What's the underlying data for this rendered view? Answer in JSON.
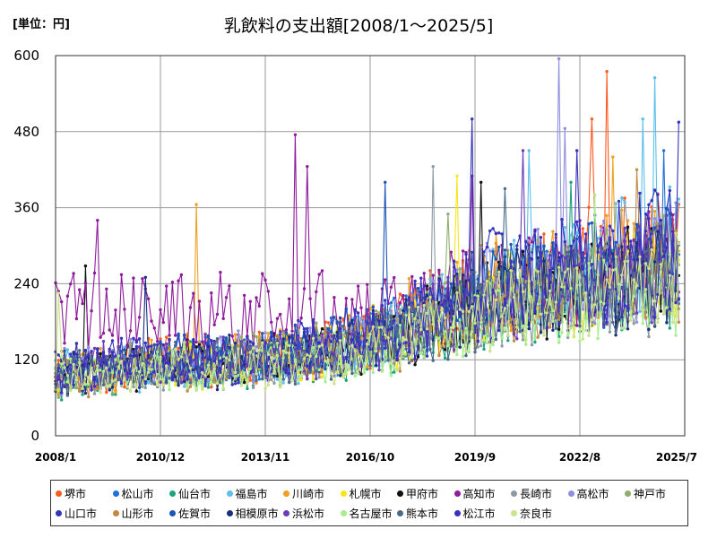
{
  "chart_data": {
    "type": "line",
    "title": "乳飲料の支出額[2008/1～2025/5]",
    "unit_label": "[単位：円]",
    "x_start": "2008/1",
    "x_end": "2025/5",
    "x_ticks": [
      "2008/1",
      "2010/12",
      "2013/11",
      "2016/10",
      "2019/9",
      "2022/8",
      "2025/7"
    ],
    "y_ticks": [
      0,
      120,
      240,
      360,
      480,
      600
    ],
    "ylim": [
      0,
      600
    ],
    "grid": true,
    "legend_position": "bottom",
    "series": [
      {
        "name": "堺市",
        "color": "#ff5a1f",
        "trend": [
          95,
          118,
          125,
          160,
          235,
          300
        ],
        "peaks": [
          [
            2023.3,
            575
          ],
          [
            2025.4,
            568
          ],
          [
            2022.9,
            500
          ]
        ]
      },
      {
        "name": "松山市",
        "color": "#1f6fd8",
        "trend": [
          92,
          112,
          118,
          150,
          220,
          270
        ],
        "peaks": [
          [
            2024.9,
            450
          ]
        ]
      },
      {
        "name": "仙台市",
        "color": "#1fa37a",
        "trend": [
          88,
          106,
          115,
          145,
          200,
          245
        ],
        "peaks": [
          [
            2022.3,
            400
          ]
        ]
      },
      {
        "name": "福島市",
        "color": "#5bc0eb",
        "trend": [
          95,
          110,
          120,
          150,
          230,
          300
        ],
        "peaks": [
          [
            2024.7,
            565
          ],
          [
            2024.3,
            500
          ],
          [
            2021.2,
            450
          ]
        ]
      },
      {
        "name": "川崎市",
        "color": "#f0a020",
        "trend": [
          100,
          118,
          128,
          160,
          240,
          285
        ],
        "peaks": [
          [
            2011.9,
            365
          ],
          [
            2023.5,
            440
          ]
        ]
      },
      {
        "name": "札幌市",
        "color": "#f5e61a",
        "trend": [
          96,
          110,
          118,
          150,
          215,
          260
        ],
        "peaks": [
          [
            2019.2,
            410
          ]
        ]
      },
      {
        "name": "甲府市",
        "color": "#111111",
        "trend": [
          100,
          115,
          120,
          150,
          215,
          255
        ],
        "peaks": [
          [
            2008.8,
            268
          ],
          [
            2019.8,
            400
          ]
        ]
      },
      {
        "name": "高知市",
        "color": "#8e1a9c",
        "trend": [
          200,
          205,
          200,
          195,
          235,
          280
        ],
        "peaks": [
          [
            2014.7,
            475
          ],
          [
            2015.0,
            425
          ],
          [
            2009.2,
            340
          ],
          [
            2019.6,
            410
          ]
        ]
      },
      {
        "name": "長崎市",
        "color": "#8c9aa6",
        "trend": [
          90,
          106,
          115,
          140,
          200,
          240
        ],
        "peaks": [
          [
            2018.5,
            425
          ]
        ]
      },
      {
        "name": "高松市",
        "color": "#8f8fe0",
        "trend": [
          100,
          118,
          125,
          155,
          230,
          285
        ],
        "peaks": [
          [
            2022.0,
            595
          ],
          [
            2022.2,
            485
          ]
        ]
      },
      {
        "name": "神戸市",
        "color": "#8fae6d",
        "trend": [
          95,
          112,
          122,
          150,
          225,
          270
        ],
        "peaks": [
          [
            2018.9,
            350
          ]
        ]
      },
      {
        "name": "山口市",
        "color": "#3333bb",
        "trend": [
          105,
          120,
          128,
          160,
          245,
          300
        ],
        "peaks": [
          [
            2019.6,
            500
          ],
          [
            2025.3,
            495
          ]
        ]
      },
      {
        "name": "山形市",
        "color": "#c08a40",
        "trend": [
          92,
          108,
          118,
          148,
          210,
          250
        ],
        "peaks": [
          [
            2024.2,
            420
          ]
        ]
      },
      {
        "name": "佐賀市",
        "color": "#1a55b8",
        "trend": [
          98,
          116,
          125,
          158,
          230,
          280
        ],
        "peaks": [
          [
            2017.2,
            400
          ]
        ]
      },
      {
        "name": "相模原市",
        "color": "#1a2f80",
        "trend": [
          96,
          110,
          120,
          148,
          210,
          255
        ],
        "peaks": [
          [
            2010.5,
            250
          ]
        ]
      },
      {
        "name": "浜松市",
        "color": "#6a3db8",
        "trend": [
          100,
          115,
          122,
          150,
          220,
          265
        ],
        "peaks": [
          [
            2021.0,
            450
          ]
        ]
      },
      {
        "name": "名古屋市",
        "color": "#a6ee8e",
        "trend": [
          90,
          105,
          112,
          135,
          190,
          235
        ],
        "peaks": [
          [
            2023.0,
            380
          ]
        ]
      },
      {
        "name": "熊本市",
        "color": "#4a6a8a",
        "trend": [
          94,
          110,
          118,
          146,
          205,
          248
        ],
        "peaks": [
          [
            2020.5,
            390
          ]
        ]
      },
      {
        "name": "松江市",
        "color": "#3a30c0",
        "trend": [
          100,
          116,
          124,
          155,
          225,
          275
        ],
        "peaks": [
          [
            2022.5,
            450
          ]
        ]
      },
      {
        "name": "奈良市",
        "color": "#cbe38a",
        "trend": [
          88,
          104,
          112,
          140,
          195,
          238
        ],
        "peaks": [
          [
            2008.1,
            225
          ]
        ]
      }
    ]
  }
}
